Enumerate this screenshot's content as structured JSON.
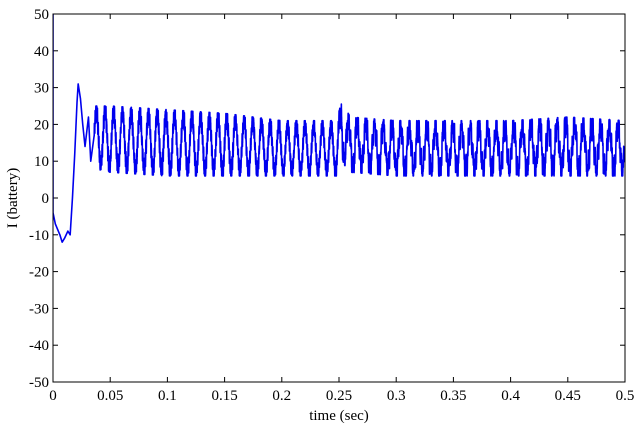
{
  "chart_data": {
    "type": "line",
    "title": "",
    "xlabel": "time (sec)",
    "ylabel": "I (battery)",
    "xlim": [
      0,
      0.5
    ],
    "ylim": [
      -50,
      50
    ],
    "xticks": [
      0,
      0.05,
      0.1,
      0.15,
      0.2,
      0.25,
      0.3,
      0.35,
      0.4,
      0.45,
      0.5
    ],
    "xtick_labels": [
      "0",
      "0.05",
      "0.1",
      "0.15",
      "0.2",
      "0.25",
      "0.3",
      "0.35",
      "0.4",
      "0.45",
      "0.5"
    ],
    "yticks": [
      -50,
      -40,
      -30,
      -20,
      -10,
      0,
      10,
      20,
      30,
      40,
      50
    ],
    "ytick_labels": [
      "-50",
      "-40",
      "-30",
      "-20",
      "-10",
      "0",
      "10",
      "20",
      "30",
      "40",
      "50"
    ],
    "grid": false,
    "line_color": "#0000ee",
    "series": [
      {
        "x": [
          0,
          0,
          0.002,
          0.006,
          0.008,
          0.01,
          0.013,
          0.015,
          0.017,
          0.019,
          0.021,
          0.022,
          0.024,
          0.026,
          0.028,
          0.031,
          0.033,
          0.036
        ],
        "y": [
          50,
          -4,
          -7,
          -10,
          -12,
          -11,
          -9,
          -10,
          0,
          12,
          26,
          31,
          27,
          20,
          14,
          22,
          10,
          17
        ]
      }
    ],
    "oscillation_envelope": {
      "x": [
        0.036,
        0.05,
        0.1,
        0.15,
        0.2,
        0.248,
        0.252,
        0.26,
        0.3,
        0.35,
        0.4,
        0.45,
        0.5
      ],
      "upper": [
        25,
        25,
        24,
        23,
        21,
        21,
        26,
        22,
        21,
        21,
        21,
        22,
        21
      ],
      "lower": [
        8,
        7,
        6,
        6,
        6,
        6,
        10,
        7,
        6,
        6,
        6,
        6,
        6
      ],
      "cycle_period_sec": 0.0076,
      "secondary_component_after_sec": 0.25
    }
  }
}
